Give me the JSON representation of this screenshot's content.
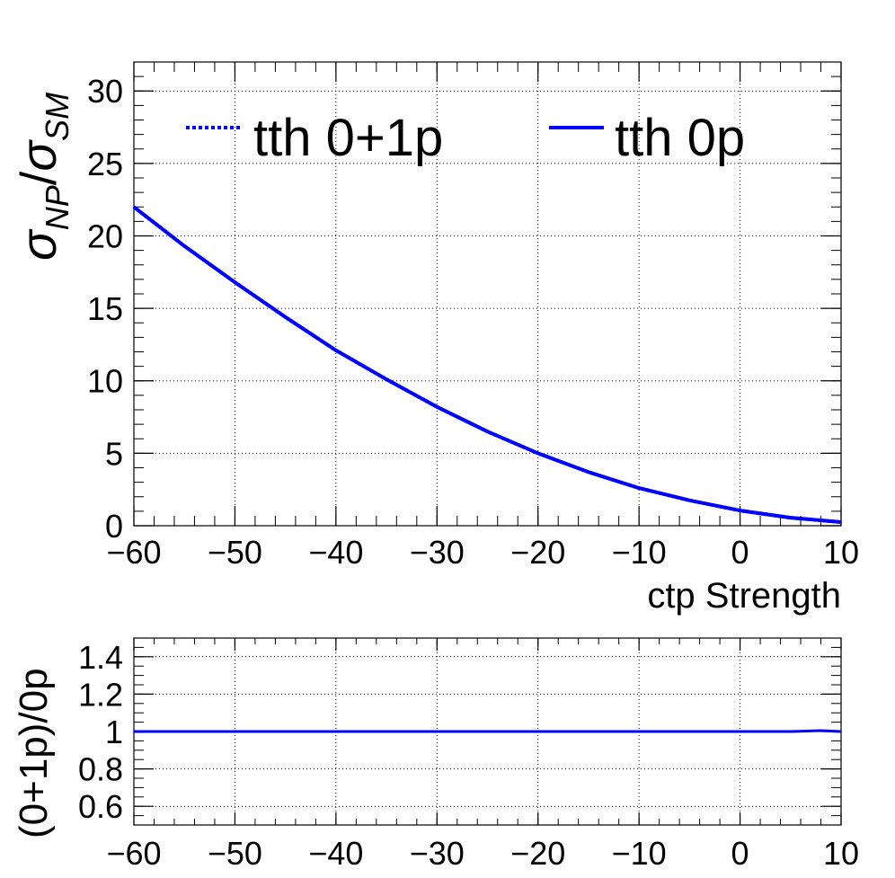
{
  "chart_data": [
    {
      "type": "line",
      "panel": "main",
      "xlabel": "ctp Strength",
      "ylabel": "σNP/σSM",
      "ylabel_parts": {
        "main": "σ",
        "sub1": "NP",
        "slash": "/",
        "main2": "σ",
        "sub2": "SM"
      },
      "xlim": [
        -60,
        10
      ],
      "ylim": [
        0,
        32
      ],
      "xticks": [
        -60,
        -50,
        -40,
        -30,
        -20,
        -10,
        0,
        10
      ],
      "xtick_labels": [
        "−60",
        "−50",
        "−40",
        "−30",
        "−20",
        "−10",
        "0",
        "10"
      ],
      "yticks": [
        0,
        5,
        10,
        15,
        20,
        25,
        30
      ],
      "ytick_labels": [
        "0",
        "5",
        "10",
        "15",
        "20",
        "25",
        "30"
      ],
      "grid": true,
      "legend": {
        "placement": "top",
        "entries": [
          {
            "label": "tth 0+1p",
            "style": "dotted",
            "color": "#0000ff"
          },
          {
            "label": "tth 0p",
            "style": "solid",
            "color": "#0000ff"
          }
        ]
      },
      "x": [
        -60,
        -55,
        -50,
        -45,
        -40,
        -35,
        -30,
        -25,
        -20,
        -15,
        -10,
        -5,
        0,
        5,
        10
      ],
      "series": [
        {
          "name": "tth 0+1p",
          "style": "dotted",
          "color": "#0000ff",
          "values": [
            22.0,
            19.3,
            16.8,
            14.4,
            12.1,
            10.1,
            8.2,
            6.5,
            5.0,
            3.7,
            2.6,
            1.75,
            1.05,
            0.55,
            0.25
          ]
        },
        {
          "name": "tth 0p",
          "style": "solid",
          "color": "#0000ff",
          "values": [
            22.0,
            19.3,
            16.8,
            14.4,
            12.1,
            10.1,
            8.2,
            6.5,
            5.0,
            3.7,
            2.6,
            1.75,
            1.05,
            0.55,
            0.25
          ]
        }
      ]
    },
    {
      "type": "line",
      "panel": "ratio",
      "xlabel": "",
      "ylabel": "(0+1p)/0p",
      "xlim": [
        -60,
        10
      ],
      "ylim": [
        0.5,
        1.5
      ],
      "xticks": [
        -60,
        -50,
        -40,
        -30,
        -20,
        -10,
        0,
        10
      ],
      "xtick_labels": [
        "−60",
        "−50",
        "−40",
        "−30",
        "−20",
        "−10",
        "0",
        "10"
      ],
      "yticks": [
        0.6,
        0.8,
        1.0,
        1.2,
        1.4
      ],
      "ytick_labels": [
        "0.6",
        "0.8",
        "1",
        "1.2",
        "1.4"
      ],
      "grid": true,
      "x": [
        -60,
        -50,
        -40,
        -30,
        -20,
        -10,
        0,
        5,
        8,
        10
      ],
      "series": [
        {
          "name": "",
          "color": "#0000ff",
          "values": [
            1.0,
            1.0,
            1.0,
            1.0,
            1.0,
            1.0,
            1.0,
            1.0,
            1.005,
            1.0
          ]
        }
      ]
    }
  ]
}
